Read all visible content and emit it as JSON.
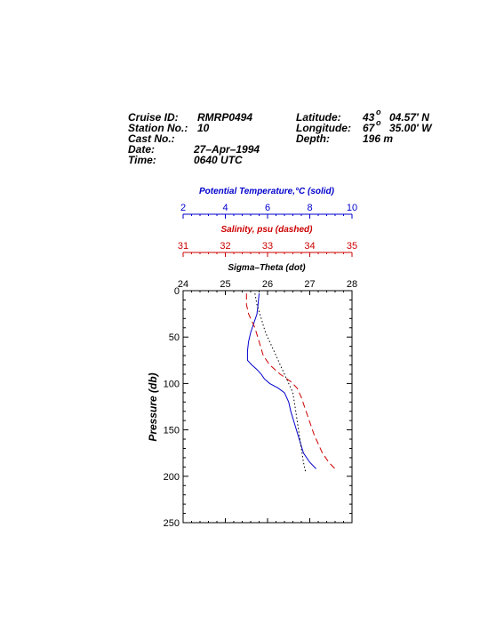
{
  "header": {
    "cruise_label": "Cruise ID:",
    "cruise_value": "RMRP0494",
    "station_label": "Station No.:",
    "station_value": "10",
    "cast_label": "Cast No.:",
    "cast_value": "",
    "date_label": "Date:",
    "date_value": "27–Apr–1994",
    "time_label": "Time:",
    "time_value": "0640 UTC",
    "lat_label": "Latitude:",
    "lat_deg": "43",
    "lat_min": "04.57′ N",
    "lon_label": "Longitude:",
    "lon_deg": "67",
    "lon_min": "35.00′ W",
    "depth_label": "Depth:",
    "depth_value": "196 m",
    "deg_sym": "o"
  },
  "colors": {
    "temperature": "#0000cc",
    "salinity": "#cc0000",
    "sigma": "#000000"
  },
  "chart_data": {
    "type": "line",
    "y_axis": {
      "label": "Pressure (db)",
      "range": [
        0,
        250
      ],
      "ticks": [
        0,
        50,
        100,
        150,
        200,
        250
      ],
      "reversed": true
    },
    "temperature_axis": {
      "label": "Potential Temperature,°C (solid)",
      "range": [
        2,
        10
      ],
      "ticks": [
        2,
        4,
        6,
        8,
        10
      ]
    },
    "salinity_axis": {
      "label": "Salinity, psu  (dashed)",
      "range": [
        31,
        35
      ],
      "ticks": [
        31,
        32,
        33,
        34,
        35
      ]
    },
    "sigma_axis": {
      "label": "Sigma–Theta (dot)",
      "range": [
        24,
        28
      ],
      "ticks": [
        24,
        25,
        26,
        27,
        28
      ]
    },
    "series": [
      {
        "name": "Potential Temperature",
        "axis": "temperature",
        "style": "solid",
        "points": [
          [
            5.6,
            3
          ],
          [
            5.55,
            15
          ],
          [
            5.5,
            25
          ],
          [
            5.35,
            35
          ],
          [
            5.2,
            45
          ],
          [
            5.1,
            55
          ],
          [
            5.05,
            65
          ],
          [
            5.05,
            75
          ],
          [
            5.25,
            80
          ],
          [
            5.5,
            85
          ],
          [
            5.7,
            90
          ],
          [
            5.85,
            95
          ],
          [
            6.1,
            100
          ],
          [
            6.5,
            105
          ],
          [
            6.8,
            110
          ],
          [
            7.0,
            120
          ],
          [
            7.1,
            130
          ],
          [
            7.3,
            145
          ],
          [
            7.5,
            160
          ],
          [
            7.7,
            175
          ],
          [
            8.0,
            185
          ],
          [
            8.3,
            192
          ]
        ]
      },
      {
        "name": "Salinity",
        "axis": "salinity",
        "style": "dashed",
        "points": [
          [
            32.5,
            3
          ],
          [
            32.5,
            15
          ],
          [
            32.55,
            25
          ],
          [
            32.7,
            40
          ],
          [
            32.8,
            55
          ],
          [
            32.9,
            70
          ],
          [
            33.05,
            80
          ],
          [
            33.3,
            90
          ],
          [
            33.55,
            98
          ],
          [
            33.7,
            105
          ],
          [
            33.8,
            115
          ],
          [
            33.95,
            135
          ],
          [
            34.1,
            155
          ],
          [
            34.3,
            175
          ],
          [
            34.45,
            185
          ],
          [
            34.6,
            192
          ]
        ]
      },
      {
        "name": "Sigma-Theta",
        "axis": "sigma",
        "style": "dot",
        "points": [
          [
            25.7,
            3
          ],
          [
            25.75,
            15
          ],
          [
            25.85,
            30
          ],
          [
            25.95,
            45
          ],
          [
            26.1,
            60
          ],
          [
            26.25,
            75
          ],
          [
            26.4,
            90
          ],
          [
            26.5,
            100
          ],
          [
            26.6,
            110
          ],
          [
            26.65,
            125
          ],
          [
            26.7,
            140
          ],
          [
            26.75,
            155
          ],
          [
            26.8,
            170
          ],
          [
            26.85,
            185
          ],
          [
            26.9,
            195
          ]
        ]
      }
    ]
  }
}
